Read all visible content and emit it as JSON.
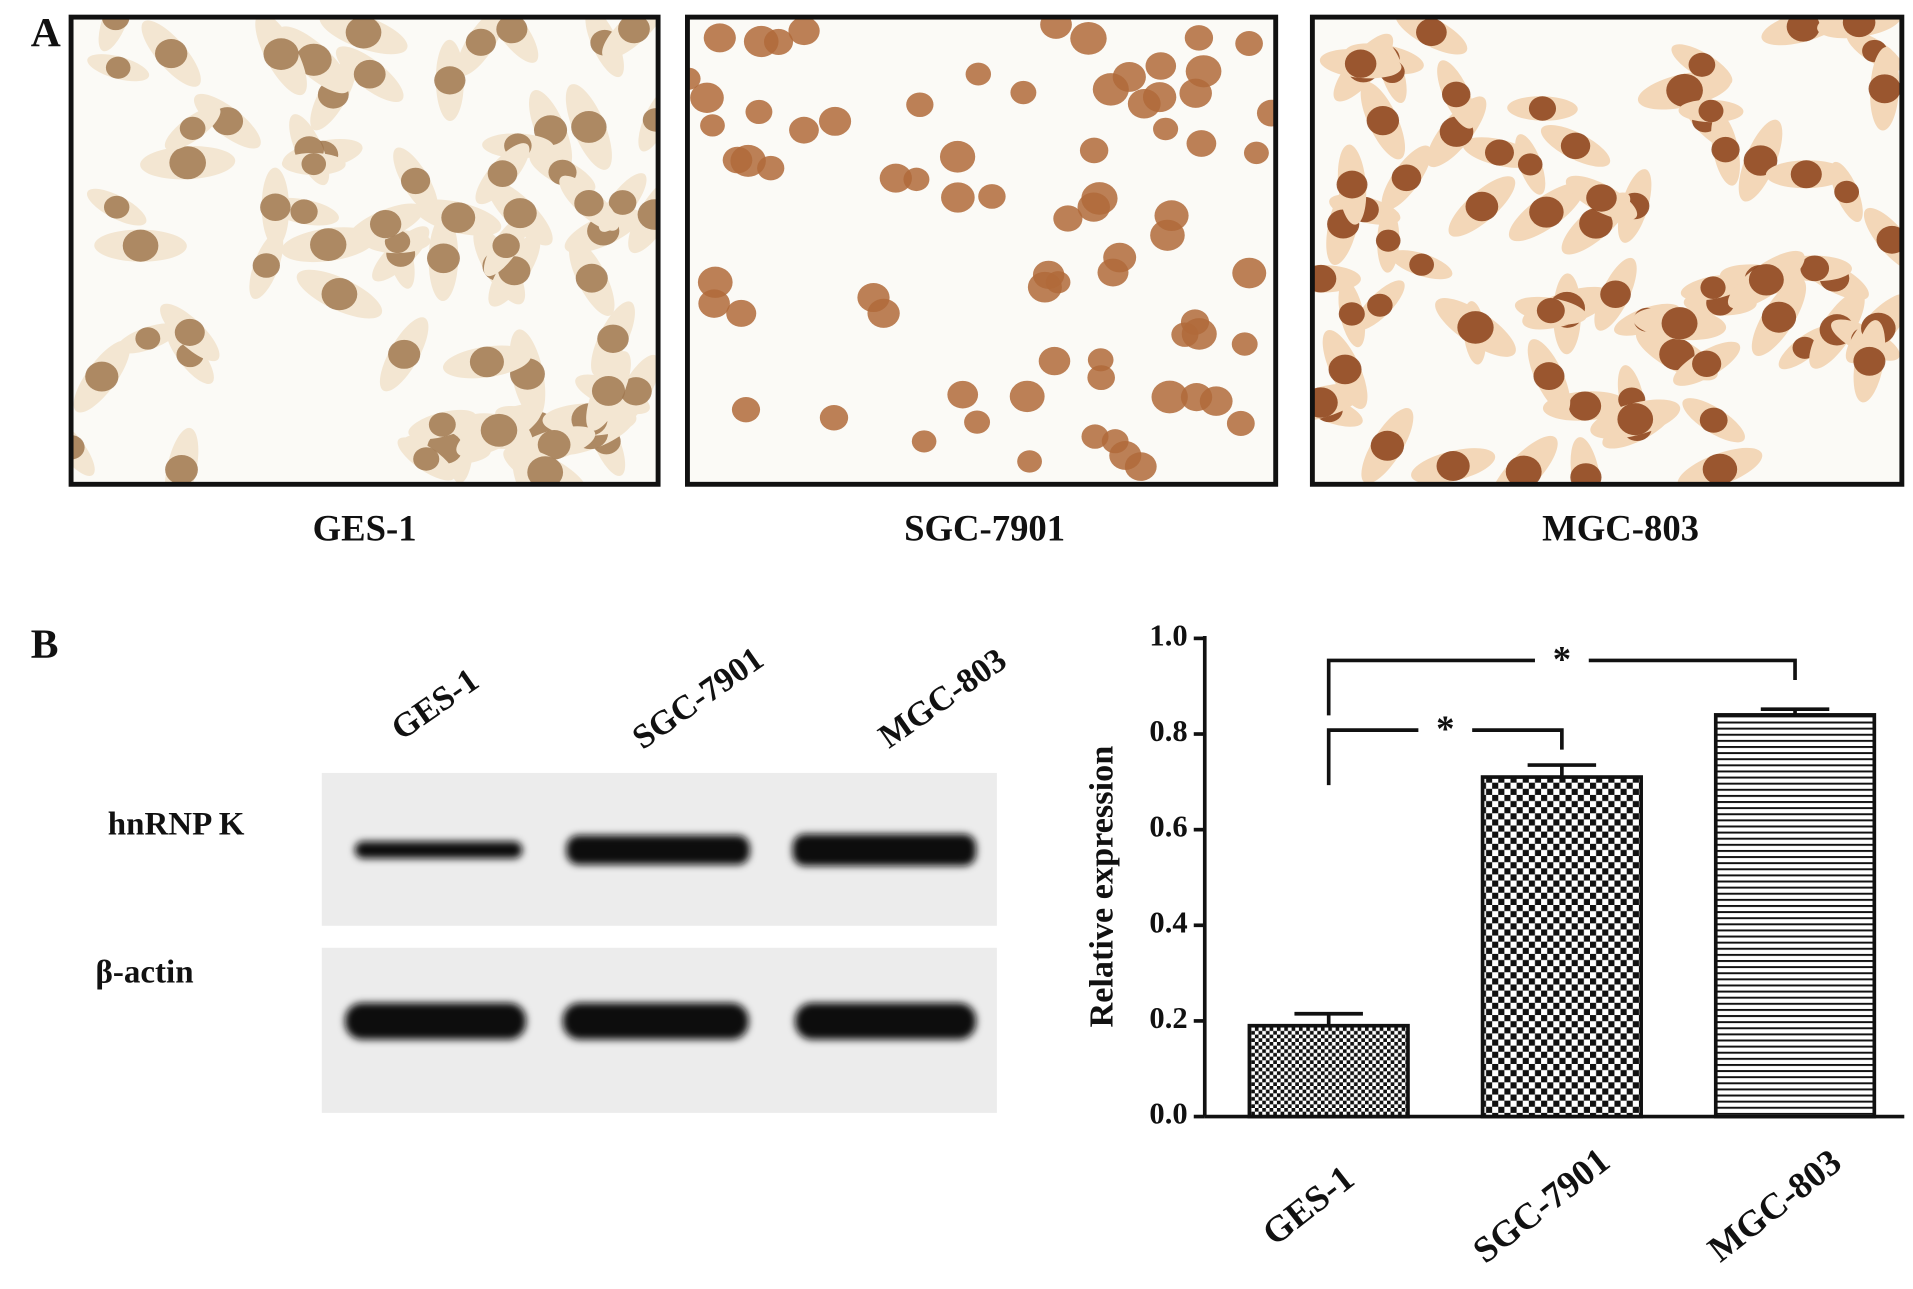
{
  "panel_a": {
    "label": "A",
    "images": [
      {
        "label": "GES-1"
      },
      {
        "label": "SGC-7901"
      },
      {
        "label": "MGC-803"
      }
    ]
  },
  "panel_b": {
    "label": "B",
    "blot": {
      "lanes": [
        "GES-1",
        "SGC-7901",
        "MGC-803"
      ],
      "rows": [
        "hnRNP K",
        "β-actin"
      ]
    }
  },
  "chart_data": {
    "type": "bar",
    "y_label": "Relative expression",
    "categories": [
      "GES-1",
      "SGC-7901",
      "MGC-803"
    ],
    "values": [
      0.19,
      0.71,
      0.84
    ],
    "errors": [
      0.025,
      0.025,
      0.012
    ],
    "ylim": [
      0,
      1.0
    ],
    "yticks": [
      {
        "value": 0,
        "label": "0.0"
      },
      {
        "value": 0.2,
        "label": "0.2"
      },
      {
        "value": 0.4,
        "label": "0.4"
      },
      {
        "value": 0.6,
        "label": "0.6"
      },
      {
        "value": 0.8,
        "label": "0.8"
      },
      {
        "value": 1.0,
        "label": "1.0"
      }
    ],
    "significance": [
      {
        "pair": [
          "GES-1",
          "SGC-7901"
        ],
        "label": "*"
      },
      {
        "pair": [
          "GES-1",
          "MGC-803"
        ],
        "label": "*"
      }
    ]
  }
}
